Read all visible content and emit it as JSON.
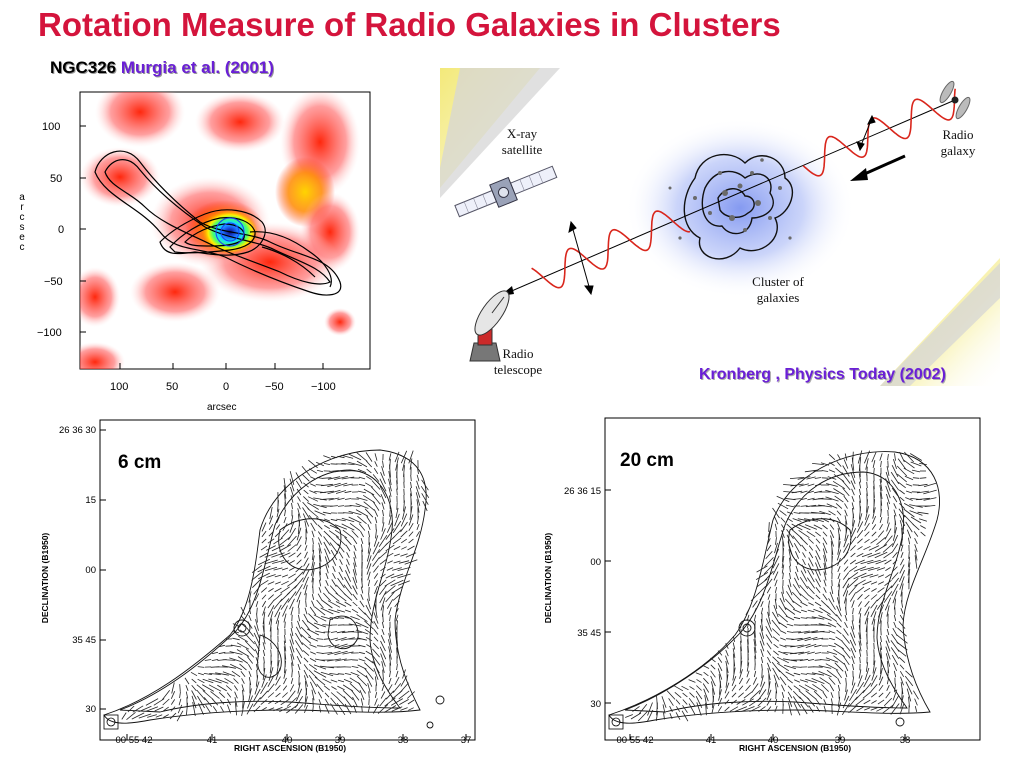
{
  "slide": {
    "title": "Rotation Measure of Radio Galaxies in Clusters",
    "ngc_label": {
      "object": "NGC326",
      "reference": "Murgia  et al. (2001)"
    },
    "illustration_credit": "Kronberg , Physics Today (2002)"
  },
  "colormap_panel": {
    "y_axis_label": "arcsec",
    "x_axis_label": "arcsec",
    "y_ticks": [
      "100",
      "50",
      "0",
      "−50",
      "−100"
    ],
    "x_ticks": [
      "100",
      "50",
      "0",
      "−50",
      "−100"
    ]
  },
  "illustration": {
    "xray_label": [
      "X-ray",
      "satellite"
    ],
    "radio_galaxy_label": [
      "Radio",
      "galaxy"
    ],
    "cluster_label": [
      "Cluster of",
      "galaxies"
    ],
    "telescope_label": [
      "Radio",
      "telescope"
    ]
  },
  "map_6cm": {
    "band": "6 cm",
    "y_axis_label": "DECLINATION (B1950)",
    "x_axis_label": "RIGHT ASCENSION (B1950)",
    "y_ticks": [
      "26 36 30",
      "15",
      "00",
      "35 45",
      "30"
    ],
    "x_ticks": [
      "00 55 42",
      "41",
      "40",
      "39",
      "38",
      "37"
    ]
  },
  "map_20cm": {
    "band": "20 cm",
    "y_axis_label": "DECLINATION (B1950)",
    "x_axis_label": "RIGHT ASCENSION (B1950)",
    "y_ticks": [
      "26 36 15",
      "00",
      "35 45",
      "30"
    ],
    "x_ticks": [
      "00 55 42",
      "41",
      "40",
      "39",
      "38"
    ]
  },
  "colors": {
    "title": "#d4143c",
    "reference": "#6a1fd6"
  }
}
